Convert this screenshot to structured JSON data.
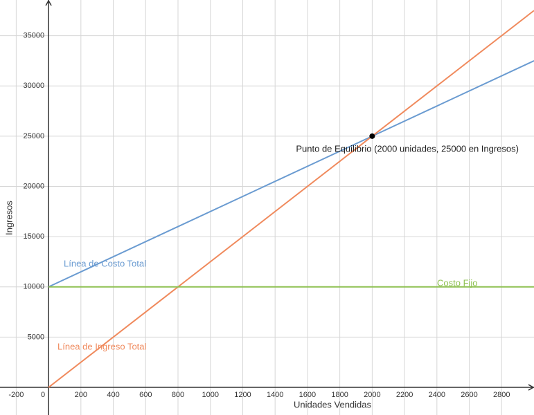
{
  "chart_data": {
    "type": "line",
    "x_label": "Unidades Vendidas",
    "y_label": "Ingresos",
    "x": [
      0,
      3000
    ],
    "series": [
      {
        "name": "Línea de Costo Total",
        "color": "#6a9bd1",
        "values": [
          10000,
          32500
        ]
      },
      {
        "name": "Línea de Ingreso Total",
        "color": "#f08a5d",
        "values": [
          0,
          37500
        ]
      },
      {
        "name": "Costo Fijo",
        "color": "#8fc153",
        "values": [
          10000,
          10000
        ]
      }
    ],
    "points": [
      {
        "x": 2000,
        "y": 25000,
        "label": "Punto de Equilibrio (2000 unidades, 25000 en Ingresos)"
      }
    ],
    "xlim": [
      -300,
      3000
    ],
    "ylim": [
      -2750,
      38550
    ],
    "xticks": [
      -200,
      0,
      200,
      400,
      600,
      800,
      1000,
      1200,
      1400,
      1600,
      1800,
      2000,
      2200,
      2400,
      2600,
      2800
    ],
    "yticks": [
      5000,
      10000,
      15000,
      20000,
      25000,
      30000,
      35000
    ],
    "grid": true
  }
}
